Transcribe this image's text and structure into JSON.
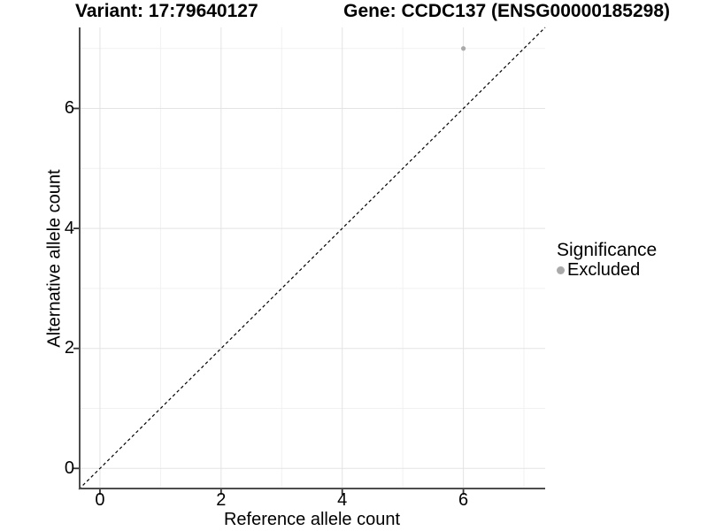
{
  "titles": {
    "variant": "Variant: 17:79640127",
    "gene": "Gene: CCDC137 (ENSG00000185298)"
  },
  "axes": {
    "x_label": "Reference allele count",
    "y_label": "Alternative allele count"
  },
  "legend": {
    "title": "Significance",
    "items": [
      {
        "label": "Excluded",
        "color": "#aaaaaa"
      }
    ]
  },
  "chart_data": {
    "type": "scatter",
    "title": "Variant: 17:79640127    Gene: CCDC137 (ENSG00000185298)",
    "xlabel": "Reference allele count",
    "ylabel": "Alternative allele count",
    "xlim": [
      -0.35,
      7.35
    ],
    "ylim": [
      -0.35,
      7.35
    ],
    "x_major_ticks": [
      0,
      2,
      4,
      6
    ],
    "y_major_ticks": [
      0,
      2,
      4,
      6
    ],
    "x_minor_ticks": [
      1,
      3,
      5,
      7
    ],
    "y_minor_ticks": [
      1,
      3,
      5,
      7
    ],
    "grid": true,
    "legend_position": "right",
    "series": [
      {
        "name": "Excluded",
        "color": "#aaaaaa",
        "points": [
          {
            "x": 6,
            "y": 7
          }
        ]
      }
    ],
    "reference_line": {
      "kind": "identity",
      "slope": 1,
      "intercept": 0,
      "style": "dashed",
      "color": "#000000"
    },
    "style": {
      "background": "#ffffff",
      "major_grid_color": "#e3e3e3",
      "minor_grid_color": "#f1f1f1",
      "axis_line_color": "#4d4d4d",
      "tick_color": "#333333",
      "point_color": "#aaaaaa",
      "point_radius": 2.6
    }
  }
}
